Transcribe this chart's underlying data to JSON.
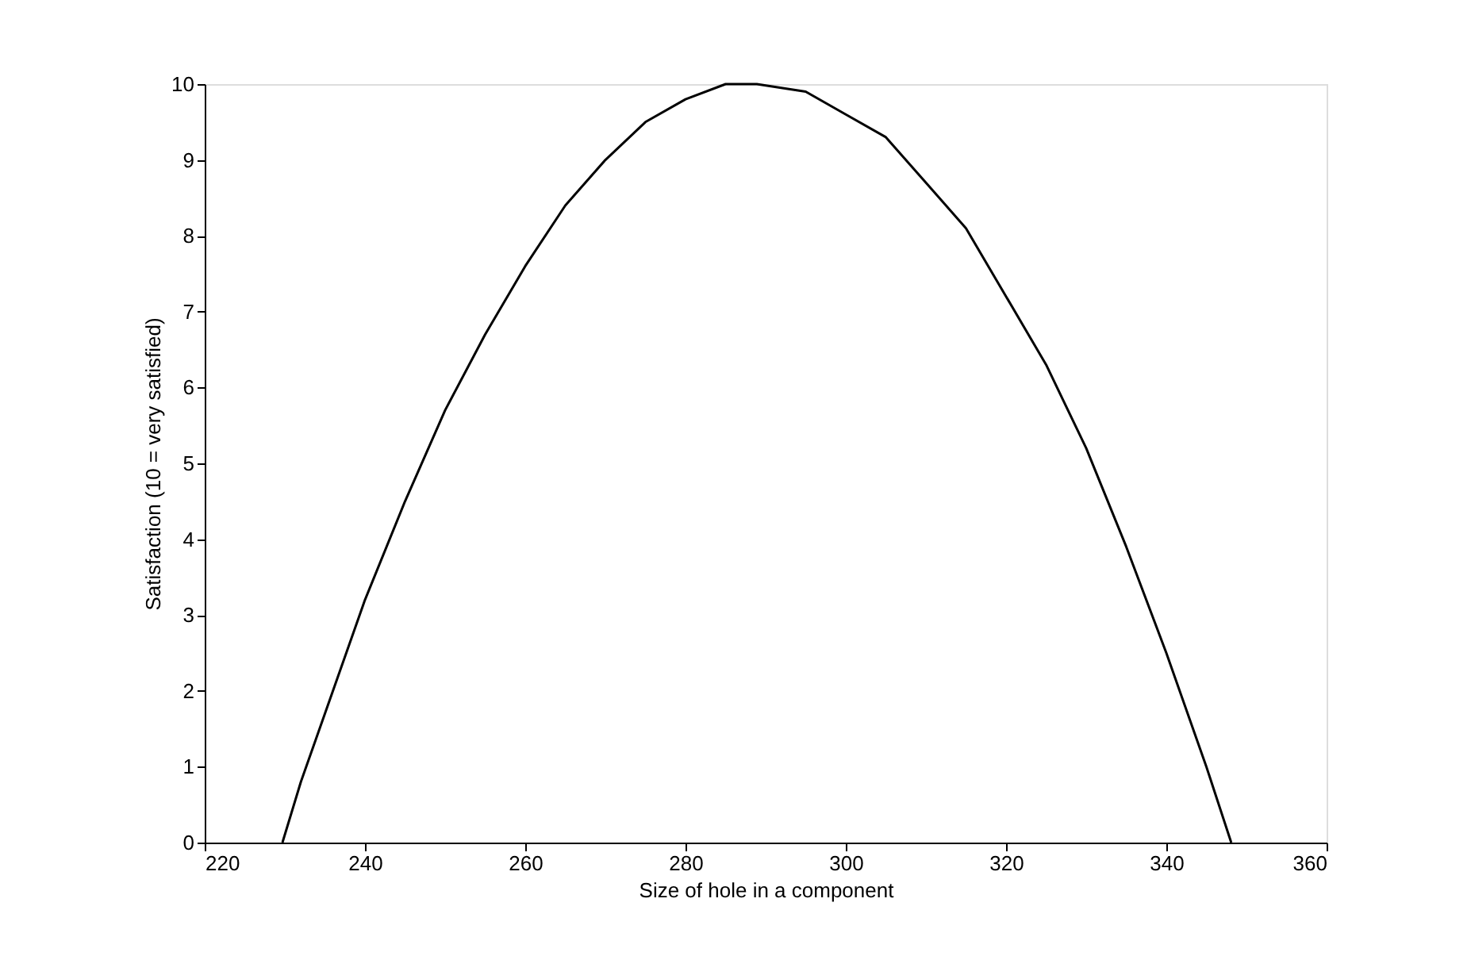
{
  "chart_data": {
    "type": "line",
    "xlabel": "Size of hole in a component",
    "ylabel": "Satisfaction (10 = very satisfied)",
    "x": [
      229.7,
      232,
      235,
      240,
      245,
      250,
      255,
      260,
      265,
      270,
      275,
      280,
      285,
      288.9,
      295,
      300,
      305,
      310,
      315,
      320,
      325,
      330,
      335,
      340,
      345,
      348.1
    ],
    "series": [
      {
        "color": "#000000",
        "values": [
          0,
          0.8,
          1.7,
          3.2,
          4.5,
          5.7,
          6.7,
          7.6,
          8.4,
          9.0,
          9.5,
          9.8,
          10.0,
          10,
          9.9,
          9.6,
          9.3,
          8.7,
          8.1,
          7.2,
          6.3,
          5.2,
          3.9,
          2.5,
          1.0,
          0
        ]
      }
    ],
    "xlim": [
      220,
      360
    ],
    "xticks": [
      220,
      240,
      260,
      280,
      300,
      320,
      340,
      360
    ],
    "ylim": [
      0,
      10
    ],
    "yticks": [
      0,
      1,
      2,
      3,
      4,
      5,
      6,
      7,
      8,
      9,
      10
    ],
    "grid": false,
    "legend": false,
    "marker": "none",
    "line_style": "solid"
  }
}
